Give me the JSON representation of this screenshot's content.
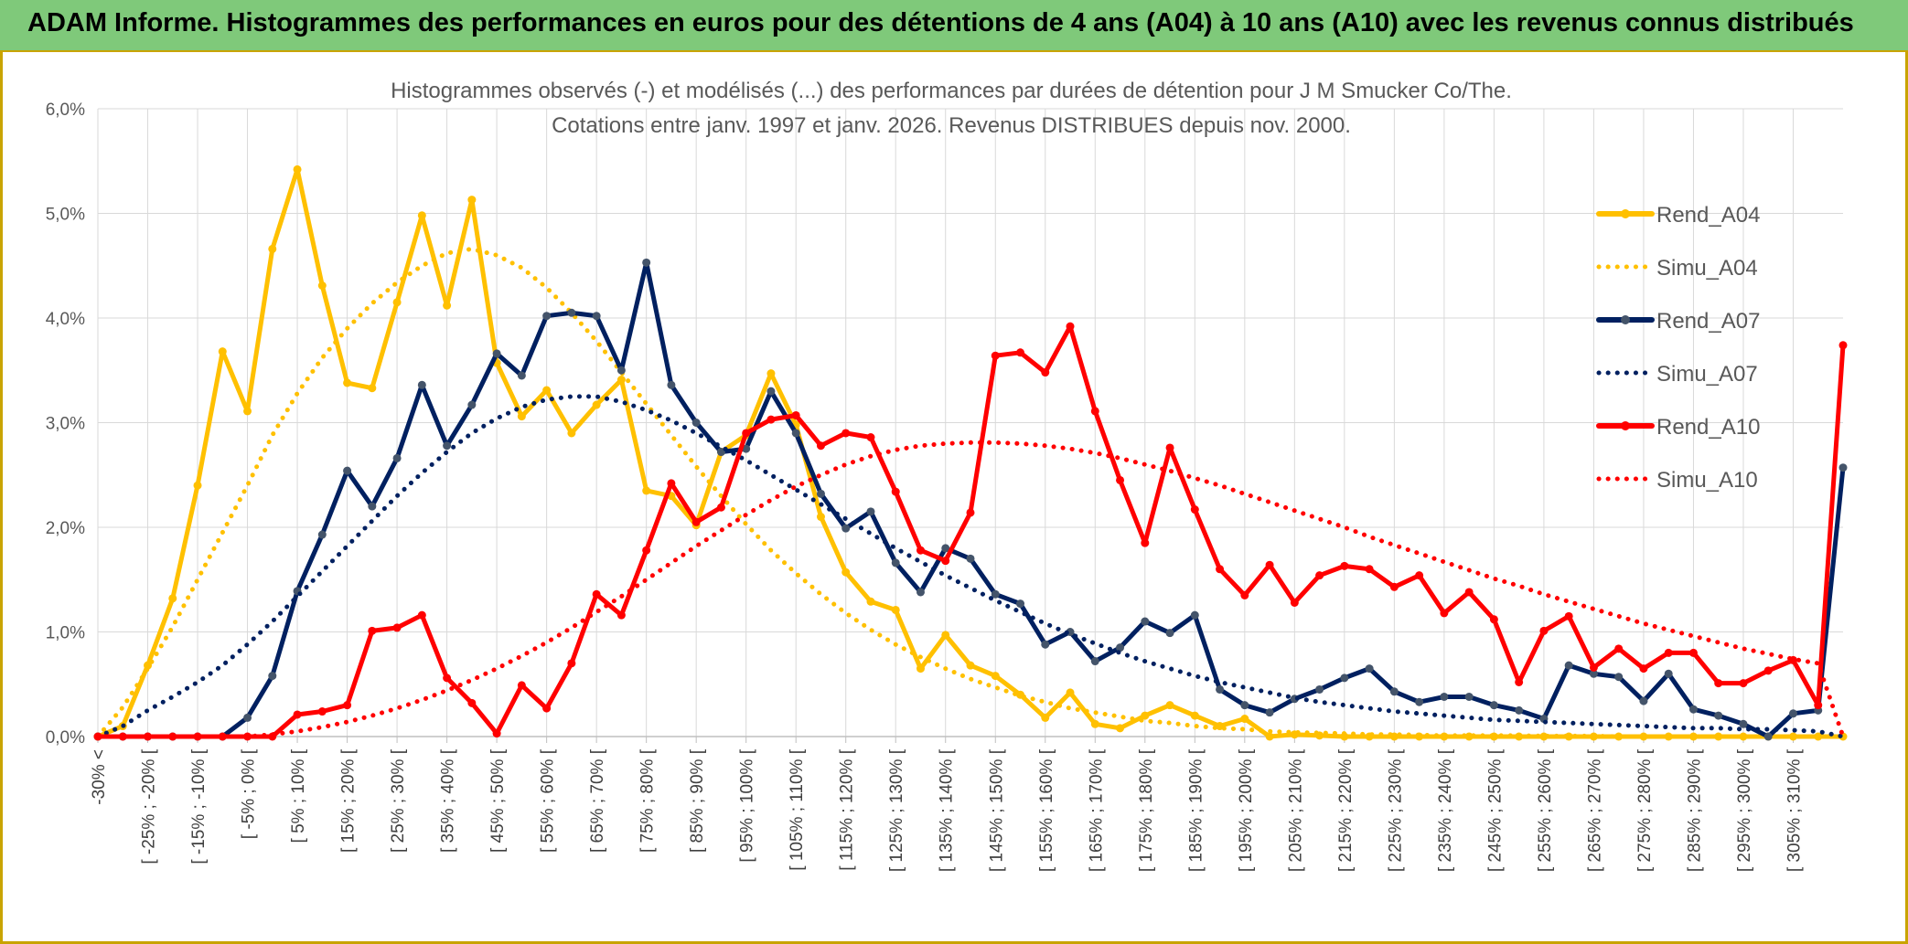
{
  "banner": {
    "title": "ADAM Informe. Histogrammes des performances en euros pour des détentions de 4 ans (A04) à 10 ans (A10) avec les revenus connus distribués"
  },
  "chart_data": {
    "type": "line",
    "title_line1": "Histogrammes observés (-) et modélisés (...) des performances par durées de détention pour J M Smucker Co/The.",
    "title_line2": "Cotations entre janv. 1997 et janv. 2026. Revenus DISTRIBUES depuis nov. 2000.",
    "ylim": [
      0,
      6
    ],
    "y_ticks": [
      "0,0%",
      "1,0%",
      "2,0%",
      "3,0%",
      "4,0%",
      "5,0%",
      "6,0%"
    ],
    "categories_count": 70,
    "x_tick_labels": [
      "-30% <",
      "[ -25% ; -20% [",
      "[ -15% ; -10% [",
      "[ -5% ; 0% [",
      "[ 5% ; 10% [",
      "[ 15% ; 20% [",
      "[ 25% ; 30% [",
      "[ 35% ; 40% [",
      "[ 45% ; 50% [",
      "[ 55% ; 60% [",
      "[ 65% ; 70% [",
      "[ 75% ; 80% [",
      "[ 85% ; 90% [",
      "[ 95% ; 100% [",
      "[ 105% ; 110% [",
      "[ 115% ; 120% [",
      "[ 125% ; 130% [",
      "[ 135% ; 140% [",
      "[ 145% ; 150% [",
      "[ 155% ; 160% [",
      "[ 165% ; 170% [",
      "[ 175% ; 180% [",
      "[ 185% ; 190% [",
      "[ 195% ; 200% [",
      "[ 205% ; 210% [",
      "[ 215% ; 220% [",
      "[ 225% ; 230% [",
      "[ 235% ; 240% [",
      "[ 245% ; 250% [",
      "[ 255% ; 260% [",
      "[ 265% ; 270% [",
      "[ 275% ; 280% [",
      "[ 285% ; 290% [",
      "[ 295% ; 300% [",
      "[ 305% ; 310% ["
    ],
    "series": [
      {
        "name": "Rend_A04",
        "color": "#ffc000",
        "style": "solid",
        "markers": true,
        "values": [
          0.0,
          0.1,
          0.68,
          1.32,
          2.4,
          3.68,
          3.11,
          4.66,
          5.42,
          4.31,
          3.38,
          3.33,
          4.15,
          4.98,
          4.12,
          5.13,
          3.57,
          3.06,
          3.31,
          2.9,
          3.17,
          3.41,
          2.35,
          2.3,
          2.02,
          2.72,
          2.88,
          3.47,
          2.98,
          2.1,
          1.57,
          1.29,
          1.21,
          0.65,
          0.97,
          0.68,
          0.58,
          0.4,
          0.18,
          0.42,
          0.12,
          0.08,
          0.2,
          0.3,
          0.2,
          0.1,
          0.17,
          0.0,
          0.02,
          0.01,
          0.0,
          0.0,
          0.0,
          0.0,
          0.0,
          0.0,
          0.0,
          0.0,
          0.0,
          0.0,
          0.0,
          0.0,
          0.0,
          0.0,
          0.0,
          0.0,
          0.0,
          0.0,
          0.0,
          0.0
        ]
      },
      {
        "name": "Simu_A04",
        "color": "#ffc000",
        "style": "dotted",
        "markers": false,
        "values": [
          0.0,
          0.28,
          0.65,
          1.05,
          1.5,
          1.95,
          2.4,
          2.88,
          3.28,
          3.62,
          3.9,
          4.14,
          4.34,
          4.5,
          4.62,
          4.66,
          4.6,
          4.48,
          4.29,
          4.05,
          3.78,
          3.48,
          3.18,
          2.88,
          2.58,
          2.3,
          2.03,
          1.78,
          1.56,
          1.36,
          1.18,
          1.02,
          0.88,
          0.76,
          0.65,
          0.55,
          0.47,
          0.39,
          0.33,
          0.27,
          0.23,
          0.19,
          0.15,
          0.13,
          0.1,
          0.08,
          0.07,
          0.05,
          0.04,
          0.035,
          0.03,
          0.02,
          0.02,
          0.015,
          0.01,
          0.01,
          0.01,
          0.01,
          0.005,
          0.005,
          0.005,
          0.0,
          0.0,
          0.0,
          0.0,
          0.0,
          0.0,
          0.0,
          0.0,
          0.0
        ]
      },
      {
        "name": "Rend_A07",
        "color": "#002060",
        "style": "solid",
        "markers": true,
        "values": [
          0.0,
          0.0,
          0.0,
          0.0,
          0.0,
          0.0,
          0.18,
          0.58,
          1.39,
          1.93,
          2.54,
          2.2,
          2.66,
          3.36,
          2.78,
          3.17,
          3.66,
          3.45,
          4.02,
          4.05,
          4.02,
          3.5,
          4.53,
          3.36,
          3.0,
          2.72,
          2.75,
          3.3,
          2.9,
          2.32,
          1.99,
          2.15,
          1.66,
          1.38,
          1.8,
          1.7,
          1.36,
          1.27,
          0.88,
          1.0,
          0.72,
          0.85,
          1.1,
          0.99,
          1.16,
          0.45,
          0.3,
          0.23,
          0.36,
          0.45,
          0.56,
          0.65,
          0.43,
          0.33,
          0.38,
          0.38,
          0.3,
          0.25,
          0.17,
          0.68,
          0.6,
          0.57,
          0.34,
          0.6,
          0.26,
          0.2,
          0.12,
          0.0,
          0.22,
          0.25
        ]
      },
      {
        "name": "Simu_A07",
        "color": "#002060",
        "style": "dotted",
        "markers": false,
        "values": [
          0.0,
          0.1,
          0.25,
          0.38,
          0.52,
          0.68,
          0.88,
          1.1,
          1.34,
          1.58,
          1.82,
          2.06,
          2.3,
          2.52,
          2.72,
          2.9,
          3.04,
          3.15,
          3.22,
          3.25,
          3.25,
          3.2,
          3.12,
          3.02,
          2.9,
          2.77,
          2.64,
          2.5,
          2.36,
          2.22,
          2.08,
          1.94,
          1.8,
          1.67,
          1.54,
          1.42,
          1.3,
          1.19,
          1.08,
          0.98,
          0.89,
          0.8,
          0.72,
          0.65,
          0.58,
          0.52,
          0.47,
          0.42,
          0.37,
          0.33,
          0.3,
          0.27,
          0.24,
          0.22,
          0.2,
          0.18,
          0.16,
          0.15,
          0.14,
          0.13,
          0.12,
          0.11,
          0.1,
          0.09,
          0.08,
          0.08,
          0.07,
          0.07,
          0.06,
          0.05
        ]
      },
      {
        "name": "Rend_A10",
        "color": "#ff0000",
        "style": "solid",
        "markers": true,
        "values": [
          0.0,
          0.0,
          0.0,
          0.0,
          0.0,
          0.0,
          0.0,
          0.0,
          0.21,
          0.24,
          0.3,
          1.01,
          1.04,
          1.16,
          0.56,
          0.32,
          0.03,
          0.49,
          0.27,
          0.7,
          1.36,
          1.16,
          1.78,
          2.42,
          2.05,
          2.19,
          2.9,
          3.03,
          3.07,
          2.78,
          2.9,
          2.86,
          2.34,
          1.78,
          1.68,
          2.14,
          3.64,
          3.67,
          3.48,
          3.92,
          3.11,
          2.45,
          1.85,
          2.76,
          2.17,
          1.6,
          1.35,
          1.64,
          1.28,
          1.54,
          1.63,
          1.6,
          1.43,
          1.54,
          1.18,
          1.38,
          1.12,
          0.52,
          1.01,
          1.15,
          0.66,
          0.84,
          0.65,
          0.8,
          0.8,
          0.51,
          0.51,
          0.63,
          0.73,
          0.3
        ]
      },
      {
        "name": "Simu_A10",
        "color": "#ff0000",
        "style": "dotted",
        "markers": false,
        "values": [
          0.0,
          0.0,
          0.0,
          0.0,
          0.0,
          0.0,
          0.0,
          0.02,
          0.05,
          0.09,
          0.14,
          0.2,
          0.27,
          0.35,
          0.44,
          0.54,
          0.65,
          0.77,
          0.9,
          1.04,
          1.19,
          1.34,
          1.5,
          1.66,
          1.82,
          1.97,
          2.12,
          2.26,
          2.39,
          2.5,
          2.6,
          2.68,
          2.74,
          2.78,
          2.8,
          2.81,
          2.81,
          2.8,
          2.78,
          2.75,
          2.71,
          2.66,
          2.6,
          2.54,
          2.47,
          2.4,
          2.32,
          2.24,
          2.16,
          2.08,
          2.0,
          1.91,
          1.83,
          1.75,
          1.67,
          1.59,
          1.51,
          1.44,
          1.36,
          1.29,
          1.22,
          1.15,
          1.08,
          1.02,
          0.96,
          0.9,
          0.84,
          0.79,
          0.74,
          0.7
        ]
      }
    ],
    "tail_points": {
      "Rend_A04": 0.0,
      "Simu_A04": 0.0,
      "Rend_A07": 2.57,
      "Simu_A07": 0.0,
      "Rend_A10": 3.74,
      "Simu_A10": 0.0
    },
    "legend_position": "right",
    "grid": true
  }
}
